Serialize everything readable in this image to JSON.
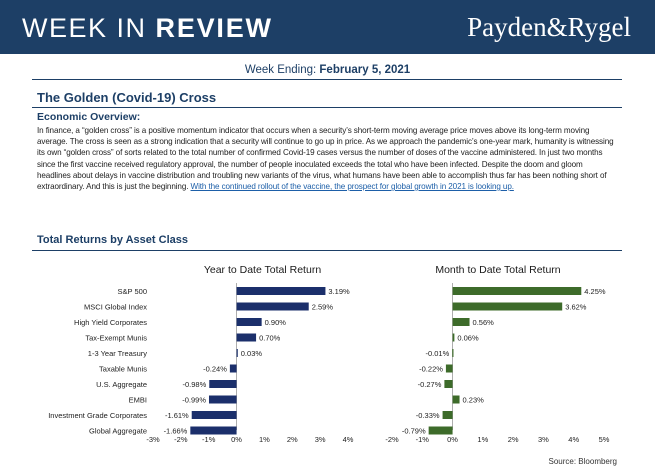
{
  "header": {
    "title_light": "WEEK IN ",
    "title_bold": "REVIEW",
    "logo": "Payden&Rygel"
  },
  "week": {
    "label": "Week Ending: ",
    "date": "February 5, 2021"
  },
  "article": {
    "title": "The Golden (Covid-19) Cross",
    "overview_label": "Economic Overview:",
    "body": "In finance, a “golden cross” is a positive momentum indicator that occurs when a security’s short-term moving average price moves above its long-term moving average. The cross is seen as a strong indication that a security will continue to go up in price. As we approach the pandemic’s one-year mark, humanity is witnessing its own “golden cross” of sorts related to the total number of confirmed Covid-19 cases versus the number of doses of the vaccine administered. In just two months since the first vaccine received regulatory approval, the number of people inoculated exceeds the total who have been infected. Despite the doom and gloom headlines about delays in vaccine distribution and troubling new variants of the virus, what humans have been able to accomplish thus far has been nothing short of extraordinary. And this is just the beginning. ",
    "link_text": "With the continued rollout of the vaccine, the prospect for global growth in 2021 is looking up."
  },
  "section": {
    "title": "Total Returns by Asset Class"
  },
  "colors": {
    "navy": "#1d3f66",
    "ytd_bar": "#1b2f6b",
    "mtd_bar": "#3d6b2a"
  },
  "chart_data": [
    {
      "type": "bar",
      "orientation": "horizontal",
      "title": "Year to Date Total Return",
      "categories": [
        "S&P 500",
        "MSCI Global Index",
        "High Yield Corporates",
        "Tax-Exempt Munis",
        "1-3 Year Treasury",
        "Taxable Munis",
        "U.S. Aggregate",
        "EMBI",
        "Investment Grade Corporates",
        "Global Aggregate"
      ],
      "values": [
        3.19,
        2.59,
        0.9,
        0.7,
        0.03,
        -0.24,
        -0.98,
        -0.99,
        -1.61,
        -1.66
      ],
      "value_labels": [
        "3.19%",
        "2.59%",
        "0.90%",
        "0.70%",
        "0.03%",
        "-0.24%",
        "-0.98%",
        "-0.99%",
        "-1.61%",
        "-1.66%"
      ],
      "ticks": [
        -3,
        -2,
        -1,
        0,
        1,
        2,
        3,
        4
      ],
      "tick_labels": [
        "-3%",
        "-2%",
        "-1%",
        "0%",
        "1%",
        "2%",
        "3%",
        "4%"
      ],
      "xlim": [
        -3,
        4
      ]
    },
    {
      "type": "bar",
      "orientation": "horizontal",
      "title": "Month to Date Total Return",
      "categories": [
        "S&P 500",
        "MSCI Global Index",
        "High Yield Corporates",
        "Tax-Exempt Munis",
        "1-3 Year Treasury",
        "Taxable Munis",
        "U.S. Aggregate",
        "EMBI",
        "Investment Grade Corporates",
        "Global Aggregate"
      ],
      "values": [
        4.25,
        3.62,
        0.56,
        0.06,
        -0.01,
        -0.22,
        -0.27,
        0.23,
        -0.33,
        -0.79
      ],
      "value_labels": [
        "4.25%",
        "3.62%",
        "0.56%",
        "0.06%",
        "-0.01%",
        "-0.22%",
        "-0.27%",
        "0.23%",
        "-0.33%",
        "-0.79%"
      ],
      "ticks": [
        -2,
        -1,
        0,
        1,
        2,
        3,
        4,
        5
      ],
      "tick_labels": [
        "-2%",
        "-1%",
        "0%",
        "1%",
        "2%",
        "3%",
        "4%",
        "5%"
      ],
      "xlim": [
        -2,
        5
      ]
    }
  ],
  "source": "Source: Bloomberg"
}
